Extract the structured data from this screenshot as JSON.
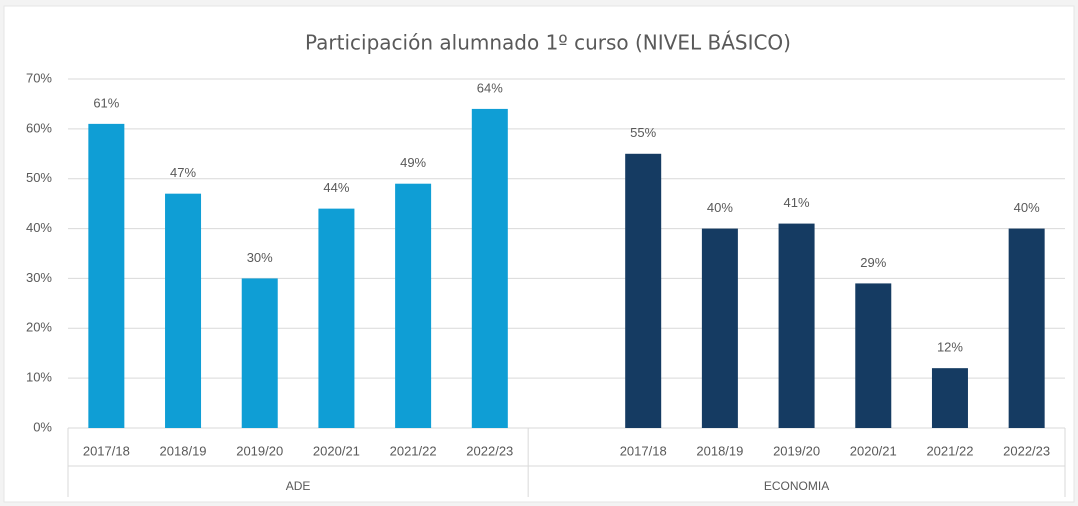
{
  "chart_data": {
    "type": "bar",
    "title": "Participación alumnado 1º curso (NIVEL BÁSICO)",
    "ylim": [
      0,
      70
    ],
    "yticks": [
      {
        "value": 0,
        "label": "0%"
      },
      {
        "value": 10,
        "label": "10%"
      },
      {
        "value": 20,
        "label": "20%"
      },
      {
        "value": 30,
        "label": "30%"
      },
      {
        "value": 40,
        "label": "40%"
      },
      {
        "value": 50,
        "label": "50%"
      },
      {
        "value": 60,
        "label": "60%"
      },
      {
        "value": 70,
        "label": "70%"
      }
    ],
    "grid": true,
    "groups": [
      {
        "name": "ADE",
        "color": "#0f9ed5",
        "categories": [
          "2017/18",
          "2018/19",
          "2019/20",
          "2020/21",
          "2021/22",
          "2022/23"
        ],
        "values": [
          61,
          47,
          30,
          44,
          49,
          64
        ],
        "value_labels": [
          "61%",
          "47%",
          "30%",
          "44%",
          "49%",
          "64%"
        ]
      },
      {
        "name": "ECONOMIA",
        "color": "#153b62",
        "categories": [
          null,
          "2017/18",
          "2018/19",
          "2019/20",
          "2020/21",
          "2021/22",
          "2022/23"
        ],
        "values": [
          null,
          55,
          40,
          41,
          29,
          12,
          40
        ],
        "value_labels": [
          null,
          "55%",
          "40%",
          "41%",
          "29%",
          "12%",
          "40%"
        ]
      }
    ]
  }
}
